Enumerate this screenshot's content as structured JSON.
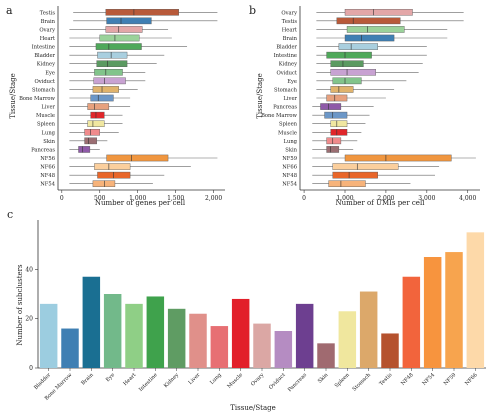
{
  "colors": {
    "axis": "#333333",
    "whisker": "#666666",
    "median": "#333333",
    "rows": {
      "Testis": "#b85a3a",
      "Brain": "#3f7fb3",
      "Ovary": "#e3a7a8",
      "Heart": "#9bd29a",
      "Intestine": "#4fa85a",
      "Bladder": "#a9cfdf",
      "Kidney": "#5b9a61",
      "Eye": "#82c48b",
      "Oviduct": "#c8a2d2",
      "Stomach": "#e0b36c",
      "Bone Marrow": "#6c97c7",
      "Liver": "#e7a17e",
      "Pancreas": "#8f5aa8",
      "Muscle": "#e0262a",
      "Spleen": "#f0e7a0",
      "Lung": "#f08b8c",
      "Skin": "#9b6e72",
      "NF56": "#f0963f",
      "NF66": "#fbcf9d",
      "NF48": "#e8662a",
      "NF54": "#f7b37a",
      "NF59": "#f0963f"
    }
  },
  "chart_data": [
    {
      "panel": "a",
      "type": "box",
      "ylabel": "Tissue/Stage",
      "xlabel": "Number of genes per cell",
      "xlim": [
        -50,
        2150
      ],
      "xticks": [
        0,
        500,
        1000,
        1500,
        2000
      ],
      "xtick_labels": [
        "0",
        "500",
        "1,000",
        "1,500",
        "2,000"
      ],
      "series": [
        {
          "name": "Testis",
          "whisker": [
            150,
            2050
          ],
          "q1": 580,
          "median": 950,
          "q3": 1540
        },
        {
          "name": "Brain",
          "whisker": [
            150,
            2050
          ],
          "q1": 590,
          "median": 780,
          "q3": 1180
        },
        {
          "name": "Ovary",
          "whisker": [
            100,
            1400
          ],
          "q1": 580,
          "median": 750,
          "q3": 1060
        },
        {
          "name": "Heart",
          "whisker": [
            100,
            1450
          ],
          "q1": 500,
          "median": 700,
          "q3": 1020
        },
        {
          "name": "Intestine",
          "whisker": [
            100,
            1650
          ],
          "q1": 450,
          "median": 620,
          "q3": 1050
        },
        {
          "name": "Bladder",
          "whisker": [
            100,
            1350
          ],
          "q1": 470,
          "median": 650,
          "q3": 860
        },
        {
          "name": "Kidney",
          "whisker": [
            100,
            1250
          ],
          "q1": 460,
          "median": 600,
          "q3": 860
        },
        {
          "name": "Eye",
          "whisker": [
            100,
            1100
          ],
          "q1": 430,
          "median": 580,
          "q3": 800
        },
        {
          "name": "Oviduct",
          "whisker": [
            100,
            1100
          ],
          "q1": 420,
          "median": 560,
          "q3": 840
        },
        {
          "name": "Stomach",
          "whisker": [
            100,
            1000
          ],
          "q1": 410,
          "median": 530,
          "q3": 750
        },
        {
          "name": "Bone Marrow",
          "whisker": [
            100,
            900
          ],
          "q1": 380,
          "median": 480,
          "q3": 680
        },
        {
          "name": "Liver",
          "whisker": [
            100,
            900
          ],
          "q1": 340,
          "median": 430,
          "q3": 620
        },
        {
          "name": "Muscle",
          "whisker": [
            100,
            800
          ],
          "q1": 380,
          "median": 450,
          "q3": 560
        },
        {
          "name": "Spleen",
          "whisker": [
            100,
            800
          ],
          "q1": 340,
          "median": 410,
          "q3": 560
        },
        {
          "name": "Lung",
          "whisker": [
            100,
            750
          ],
          "q1": 300,
          "median": 380,
          "q3": 500
        },
        {
          "name": "Skin",
          "whisker": [
            100,
            600
          ],
          "q1": 300,
          "median": 350,
          "q3": 460
        },
        {
          "name": "Pancreas",
          "whisker": [
            100,
            500
          ],
          "q1": 220,
          "median": 270,
          "q3": 370
        },
        {
          "name": "NF56",
          "whisker": [
            100,
            2050
          ],
          "q1": 590,
          "median": 920,
          "q3": 1400
        },
        {
          "name": "NF66",
          "whisker": [
            100,
            1700
          ],
          "q1": 430,
          "median": 620,
          "q3": 900
        },
        {
          "name": "NF48",
          "whisker": [
            100,
            1350
          ],
          "q1": 470,
          "median": 680,
          "q3": 900
        },
        {
          "name": "NF54",
          "whisker": [
            100,
            1200
          ],
          "q1": 410,
          "median": 560,
          "q3": 700
        }
      ]
    },
    {
      "panel": "b",
      "type": "box",
      "ylabel": "Tissue/Stage",
      "xlabel": "Number of UMIs per cell",
      "xlim": [
        -100,
        4300
      ],
      "xticks": [
        0,
        1000,
        2000,
        3000,
        4000
      ],
      "xtick_labels": [
        "0",
        "1,000",
        "2,000",
        "3,000",
        "4,000"
      ],
      "series": [
        {
          "name": "Ovary",
          "whisker": [
            300,
            3900
          ],
          "q1": 1000,
          "median": 1700,
          "q3": 2650
        },
        {
          "name": "Testis",
          "whisker": [
            300,
            3900
          ],
          "q1": 800,
          "median": 1200,
          "q3": 2350
        },
        {
          "name": "Heart",
          "whisker": [
            300,
            3500
          ],
          "q1": 1050,
          "median": 1550,
          "q3": 2450
        },
        {
          "name": "Brain",
          "whisker": [
            300,
            3500
          ],
          "q1": 1000,
          "median": 1400,
          "q3": 2200
        },
        {
          "name": "Bladder",
          "whisker": [
            300,
            3000
          ],
          "q1": 850,
          "median": 1150,
          "q3": 1800
        },
        {
          "name": "Intestine",
          "whisker": [
            300,
            3000
          ],
          "q1": 550,
          "median": 1000,
          "q3": 1650
        },
        {
          "name": "Kidney",
          "whisker": [
            300,
            2900
          ],
          "q1": 650,
          "median": 950,
          "q3": 1450
        },
        {
          "name": "Oviduct",
          "whisker": [
            300,
            2800
          ],
          "q1": 650,
          "median": 1050,
          "q3": 1750
        },
        {
          "name": "Eye",
          "whisker": [
            300,
            2500
          ],
          "q1": 700,
          "median": 1000,
          "q3": 1400
        },
        {
          "name": "Stomach",
          "whisker": [
            300,
            2200
          ],
          "q1": 650,
          "median": 850,
          "q3": 1200
        },
        {
          "name": "Liver",
          "whisker": [
            300,
            2000
          ],
          "q1": 550,
          "median": 750,
          "q3": 1050
        },
        {
          "name": "Pancreas",
          "whisker": [
            200,
            1700
          ],
          "q1": 400,
          "median": 600,
          "q3": 900
        },
        {
          "name": "Bone Marrow",
          "whisker": [
            200,
            1600
          ],
          "q1": 500,
          "median": 700,
          "q3": 1050
        },
        {
          "name": "Spleen",
          "whisker": [
            200,
            1500
          ],
          "q1": 650,
          "median": 800,
          "q3": 1050
        },
        {
          "name": "Muscle",
          "whisker": [
            200,
            1400
          ],
          "q1": 650,
          "median": 800,
          "q3": 1050
        },
        {
          "name": "Lung",
          "whisker": [
            200,
            1300
          ],
          "q1": 550,
          "median": 700,
          "q3": 900
        },
        {
          "name": "Skin",
          "whisker": [
            200,
            1200
          ],
          "q1": 550,
          "median": 650,
          "q3": 850
        },
        {
          "name": "NF59",
          "whisker": [
            200,
            4200
          ],
          "q1": 1000,
          "median": 2000,
          "q3": 3600
        },
        {
          "name": "NF66",
          "whisker": [
            200,
            3300
          ],
          "q1": 700,
          "median": 1300,
          "q3": 2300
        },
        {
          "name": "NF48",
          "whisker": [
            200,
            3200
          ],
          "q1": 700,
          "median": 1100,
          "q3": 1800
        },
        {
          "name": "NF54",
          "whisker": [
            200,
            2600
          ],
          "q1": 600,
          "median": 900,
          "q3": 1500
        }
      ]
    },
    {
      "panel": "c",
      "type": "bar",
      "xlabel": "Tissue/Stage",
      "ylabel": "Number of subclusters",
      "ylim": [
        0,
        60
      ],
      "yticks": [
        0,
        20,
        40
      ],
      "categories": [
        "Bladder",
        "Bone Marrow",
        "Brain",
        "Eye",
        "Heart",
        "Intestine",
        "Kidney",
        "Liver",
        "Lung",
        "Muscle",
        "Ovary",
        "Oviduct",
        "Pancreas",
        "Skin",
        "Spleen",
        "Stomach",
        "Testis",
        "NF48",
        "NF54",
        "NF59",
        "NF66"
      ],
      "values": [
        26,
        16,
        37,
        30,
        26,
        29,
        24,
        22,
        17,
        28,
        18,
        15,
        26,
        10,
        23,
        31,
        14,
        37,
        45,
        47,
        55
      ],
      "colors": [
        "#9ccde0",
        "#3f7fb3",
        "#1a6f92",
        "#72b98a",
        "#8fcf86",
        "#3fa24c",
        "#5f9c63",
        "#e0908a",
        "#e76f73",
        "#e21f2a",
        "#dba7a4",
        "#b58cc2",
        "#6d3f90",
        "#a06a70",
        "#f0e79e",
        "#dca86a",
        "#b5522e",
        "#f2643c",
        "#f7943e",
        "#f7a44e",
        "#fdd9a9"
      ]
    }
  ],
  "panels": {
    "a": {
      "letter": "a"
    },
    "b": {
      "letter": "b"
    },
    "c": {
      "letter": "c"
    }
  }
}
